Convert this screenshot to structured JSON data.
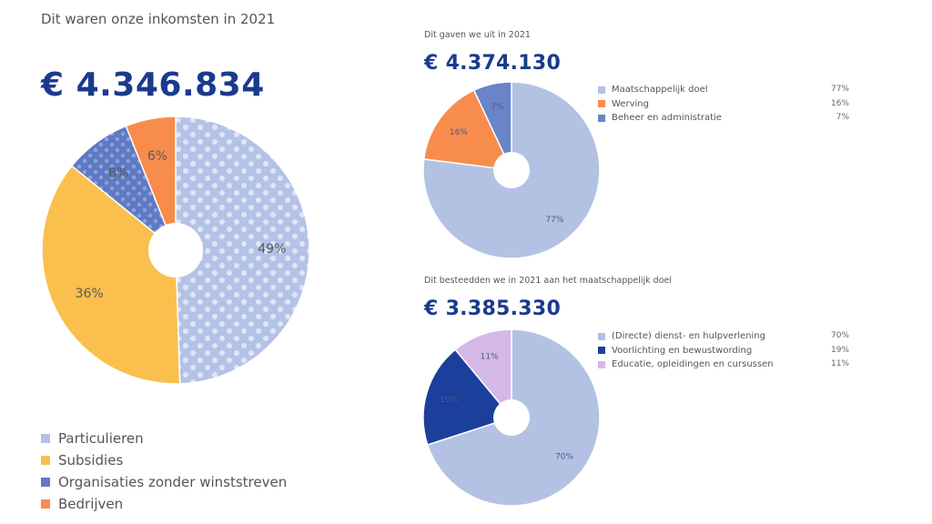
{
  "chart_data": [
    {
      "type": "pie",
      "title": "Dit waren onze inkomsten in 2021",
      "total": "€ 4.346.834",
      "categories": [
        "Particulieren",
        "Subsidies",
        "Organisaties zonder winststreven",
        "Bedrijven"
      ],
      "values": [
        49,
        36,
        8,
        6
      ],
      "labels": [
        "49%",
        "36%",
        "8%",
        "6%"
      ],
      "colors": [
        "#b3c2e6",
        "#fbbf4d",
        "#5f7ac4",
        "#f88c4c"
      ],
      "pattern": "dots on Particulieren and Organisaties zonder winststreven",
      "legend": "bottom"
    },
    {
      "type": "pie",
      "title": "Dit gaven we uit in 2021",
      "total": "€ 4.374.130",
      "categories": [
        "Maatschappelijk doel",
        "Werving",
        "Beheer en administratie"
      ],
      "values": [
        77,
        16,
        7
      ],
      "labels": [
        "77%",
        "16%",
        "7%"
      ],
      "colors": [
        "#b3c2e3",
        "#f88c4c",
        "#6a84c8"
      ],
      "legend": "right"
    },
    {
      "type": "pie",
      "title": "Dit besteedden we in 2021 aan het maatschappelijk doel",
      "total": "€ 3.385.330",
      "categories": [
        "(Directe) dienst- en hulpverlening",
        "Voorlichting en bewustwording",
        "Educatie, opleidingen en cursussen"
      ],
      "values": [
        70,
        19,
        11
      ],
      "labels": [
        "70%",
        "19%",
        "11%"
      ],
      "colors": [
        "#b3c2e3",
        "#1b3f9a",
        "#d4b9e8"
      ],
      "legend": "right"
    }
  ]
}
